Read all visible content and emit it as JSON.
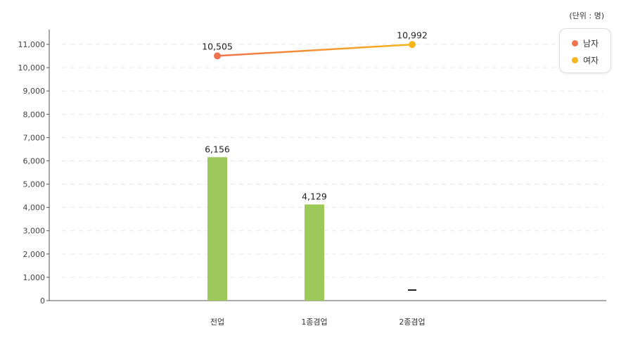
{
  "unit_label": "(단위 : 명)",
  "colors": {
    "bar": "#9dc85a",
    "male": "#ef7350",
    "female": "#f6b51c",
    "axis": "#555555",
    "grid": "#e6e6e6"
  },
  "legend": [
    {
      "label": "남자",
      "color": "#ef7350"
    },
    {
      "label": "여자",
      "color": "#f6b51c"
    }
  ],
  "chart_data": {
    "type": "bar",
    "categories": [
      "전업",
      "1종겸업",
      "2종겸업"
    ],
    "ylim": [
      0,
      11000
    ],
    "yticks": [
      0,
      1000,
      2000,
      3000,
      4000,
      5000,
      6000,
      7000,
      8000,
      9000,
      10000,
      11000
    ],
    "ytick_labels": [
      "0",
      "1,000",
      "2,000",
      "3,000",
      "4,000",
      "5,000",
      "6,000",
      "7,000",
      "8,000",
      "9,000",
      "10,000",
      "11,000"
    ],
    "bars": {
      "values": [
        6156,
        4129,
        null
      ],
      "labels": [
        "6,156",
        "4,129",
        "—"
      ]
    },
    "line_points": [
      {
        "name": "남자",
        "category": "전업",
        "value": 10505,
        "label": "10,505"
      },
      {
        "name": "여자",
        "category": "2종겸업",
        "value": 10992,
        "label": "10,992"
      }
    ],
    "grid": true,
    "legend_position": "top-right"
  }
}
